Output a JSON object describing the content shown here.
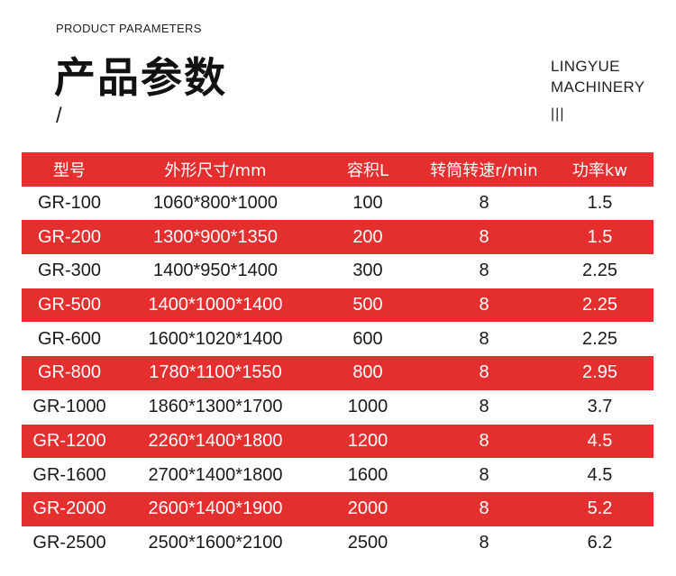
{
  "header": {
    "subtitle_en": "PRODUCT PARAMETERS",
    "title_cn": "产品参数",
    "slash": "/",
    "brand_line1": "LINGYUE",
    "brand_line2": "MACHINERY",
    "brand_bars": "|||"
  },
  "colors": {
    "accent": "#e52f2f",
    "text": "#1a1a1a"
  },
  "table": {
    "columns": [
      "型号",
      "外形尺寸/mm",
      "容积L",
      "转筒转速r/min",
      "功率kw"
    ],
    "rows": [
      [
        "GR-100",
        "1060*800*1000",
        "100",
        "8",
        "1.5"
      ],
      [
        "GR-200",
        "1300*900*1350",
        "200",
        "8",
        "1.5"
      ],
      [
        "GR-300",
        "1400*950*1400",
        "300",
        "8",
        "2.25"
      ],
      [
        "GR-500",
        "1400*1000*1400",
        "500",
        "8",
        "2.25"
      ],
      [
        "GR-600",
        "1600*1020*1400",
        "600",
        "8",
        "2.25"
      ],
      [
        "GR-800",
        "1780*1100*1550",
        "800",
        "8",
        "2.95"
      ],
      [
        "GR-1000",
        "1860*1300*1700",
        "1000",
        "8",
        "3.7"
      ],
      [
        "GR-1200",
        "2260*1400*1800",
        "1200",
        "8",
        "4.5"
      ],
      [
        "GR-1600",
        "2700*1400*1800",
        "1600",
        "8",
        "4.5"
      ],
      [
        "GR-2000",
        "2600*1400*1900",
        "2000",
        "8",
        "5.2"
      ],
      [
        "GR-2500",
        "2500*1600*2100",
        "2500",
        "8",
        "6.2"
      ]
    ]
  }
}
